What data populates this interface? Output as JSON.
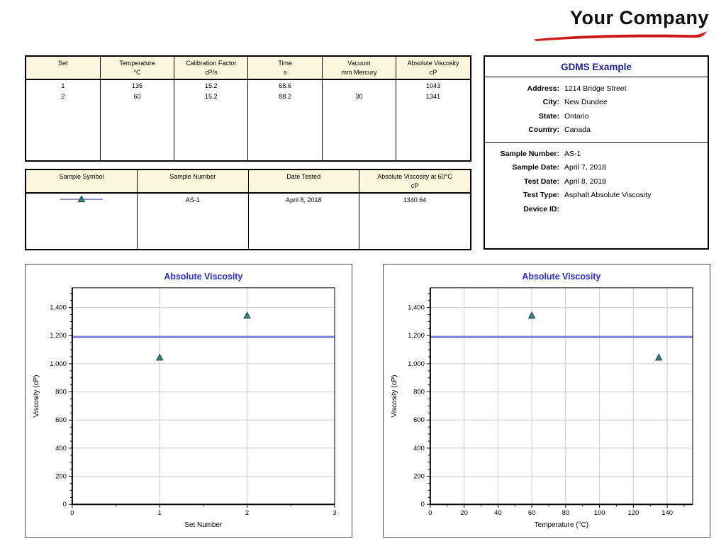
{
  "logo": {
    "text": "Your Company"
  },
  "colors": {
    "accent_blue": "#2B2BD9",
    "navy_title": "#1C1C9C",
    "table_header_bg": "#FBF7DC",
    "reference_line": "#5A5AD0",
    "marker_fill": "#2E8B6B",
    "marker_stroke": "#1C3A66",
    "logo_red": "#CC1A1A",
    "grid_line": "#CCCCCC"
  },
  "results_table": {
    "headers": [
      {
        "name": "Set",
        "unit": ""
      },
      {
        "name": "Temperature",
        "unit": "°C"
      },
      {
        "name": "Calibration Factor",
        "unit": "cP/s"
      },
      {
        "name": "Time",
        "unit": "s"
      },
      {
        "name": "Vacuum",
        "unit": "mm Mercury"
      },
      {
        "name": "Absolute Viscosity",
        "unit": "cP"
      }
    ],
    "rows": [
      [
        "1",
        "135",
        "15.2",
        "68.6",
        "",
        "1043"
      ],
      [
        "2",
        "60",
        "15.2",
        "88.2",
        "30",
        "1341"
      ]
    ]
  },
  "sample_table": {
    "headers": [
      {
        "name": "Sample Symbol",
        "unit": ""
      },
      {
        "name": "Sample Number",
        "unit": ""
      },
      {
        "name": "Date Tested",
        "unit": ""
      },
      {
        "name": "Absolute Viscosity at 60°C",
        "unit": "cP"
      }
    ],
    "rows": [
      {
        "symbol": "line-with-triangle-marker",
        "cells": [
          "AS-1",
          "April 8, 2018",
          "1340.64"
        ]
      }
    ]
  },
  "info_panel": {
    "title": "GDMS Example",
    "sections": [
      {
        "rows": [
          {
            "label": "Address:",
            "value": "1214 Bridge Street"
          },
          {
            "label": "City:",
            "value": "New Dundee"
          },
          {
            "label": "State:",
            "value": "Ontario"
          },
          {
            "label": "Country:",
            "value": "Canada"
          }
        ]
      },
      {
        "rows": [
          {
            "label": "Sample Number:",
            "value": "AS-1"
          },
          {
            "label": "Sample Date:",
            "value": "April 7, 2018"
          },
          {
            "label": "Test Date:",
            "value": "April 8, 2018"
          },
          {
            "label": "Test Type:",
            "value": "Asphalt Absolute Viscosity"
          },
          {
            "label": "Device ID:",
            "value": ""
          }
        ]
      }
    ]
  },
  "chart_data": [
    {
      "type": "scatter",
      "title": "Absolute Viscosity",
      "xlabel": "Set Number",
      "ylabel": "Viscosity (cP)",
      "xlim": [
        0,
        3
      ],
      "ylim": [
        0,
        1540
      ],
      "x_ticks": [
        0,
        1,
        2,
        3
      ],
      "x_minor_step": 0.5,
      "y_tick_step": 200,
      "y_minor_step": 50,
      "grid": true,
      "legend_position": "none",
      "marker": "triangle",
      "points": [
        {
          "x": 1,
          "y": 1043
        },
        {
          "x": 2,
          "y": 1341
        }
      ],
      "ref_line_y": 1190
    },
    {
      "type": "scatter",
      "title": "Absolute Viscosity",
      "xlabel": "Temperature (°C)",
      "ylabel": "Viscosity (cP)",
      "xlim": [
        0,
        155
      ],
      "ylim": [
        0,
        1540
      ],
      "x_ticks": [
        0,
        20,
        40,
        60,
        80,
        100,
        120,
        140
      ],
      "x_minor_step": 10,
      "y_tick_step": 200,
      "y_minor_step": 50,
      "grid": true,
      "legend_position": "none",
      "marker": "triangle",
      "points": [
        {
          "x": 60,
          "y": 1341
        },
        {
          "x": 135,
          "y": 1043
        }
      ],
      "ref_line_y": 1190
    }
  ]
}
